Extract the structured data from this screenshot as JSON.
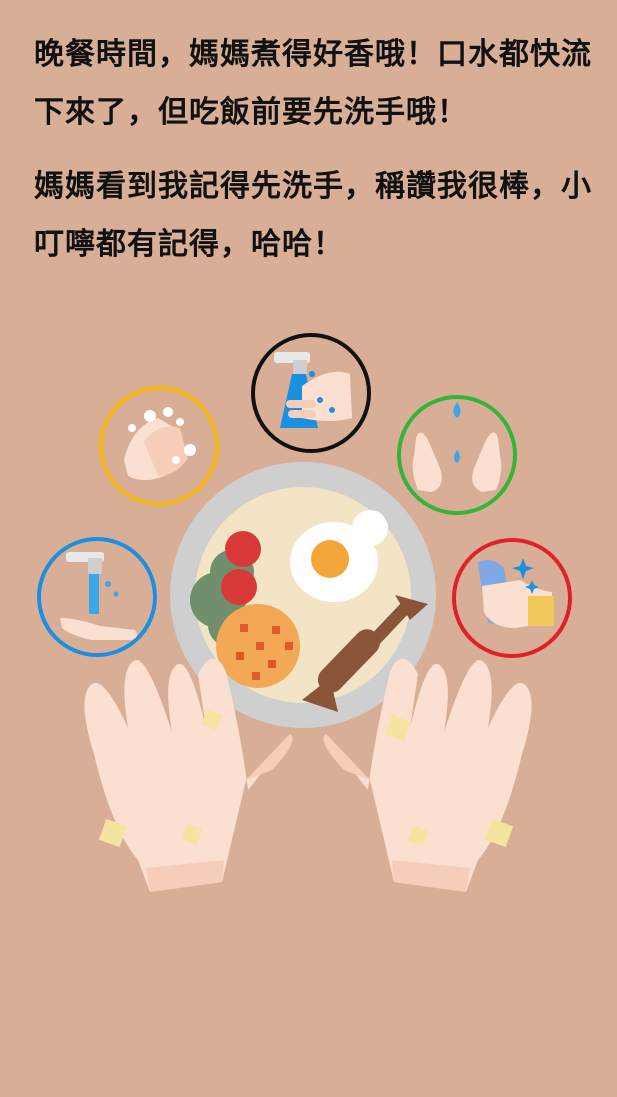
{
  "story": {
    "paragraph_1": "晚餐時間，媽媽煮得好香哦！口水都快流下來了，但吃飯前要先洗手哦！",
    "paragraph_2": "媽媽看到我記得先洗手，稱讚我很棒，小叮嚀都有記得，哈哈！"
  },
  "colors": {
    "background": "#d8ae97",
    "ring_blue": "#1b8fe0",
    "ring_yellow": "#f2b817",
    "ring_black": "#111111",
    "ring_green": "#36b33b",
    "ring_red": "#e0202a",
    "plate": "#cfcfcf",
    "skin": "#fbe0d2",
    "germ": "#f5e3a0"
  },
  "illustration": {
    "steps": [
      {
        "icon": "rinse-hands-icon",
        "ring": "blue"
      },
      {
        "icon": "lather-soap-icon",
        "ring": "yellow"
      },
      {
        "icon": "faucet-wash-icon",
        "ring": "black"
      },
      {
        "icon": "cupped-hands-water-icon",
        "ring": "green"
      },
      {
        "icon": "dry-towel-icon",
        "ring": "red"
      }
    ],
    "plate_items": [
      "egg-icon",
      "tomato-icon",
      "broccoli-icon",
      "cookie-icon",
      "sausage-icon"
    ]
  }
}
